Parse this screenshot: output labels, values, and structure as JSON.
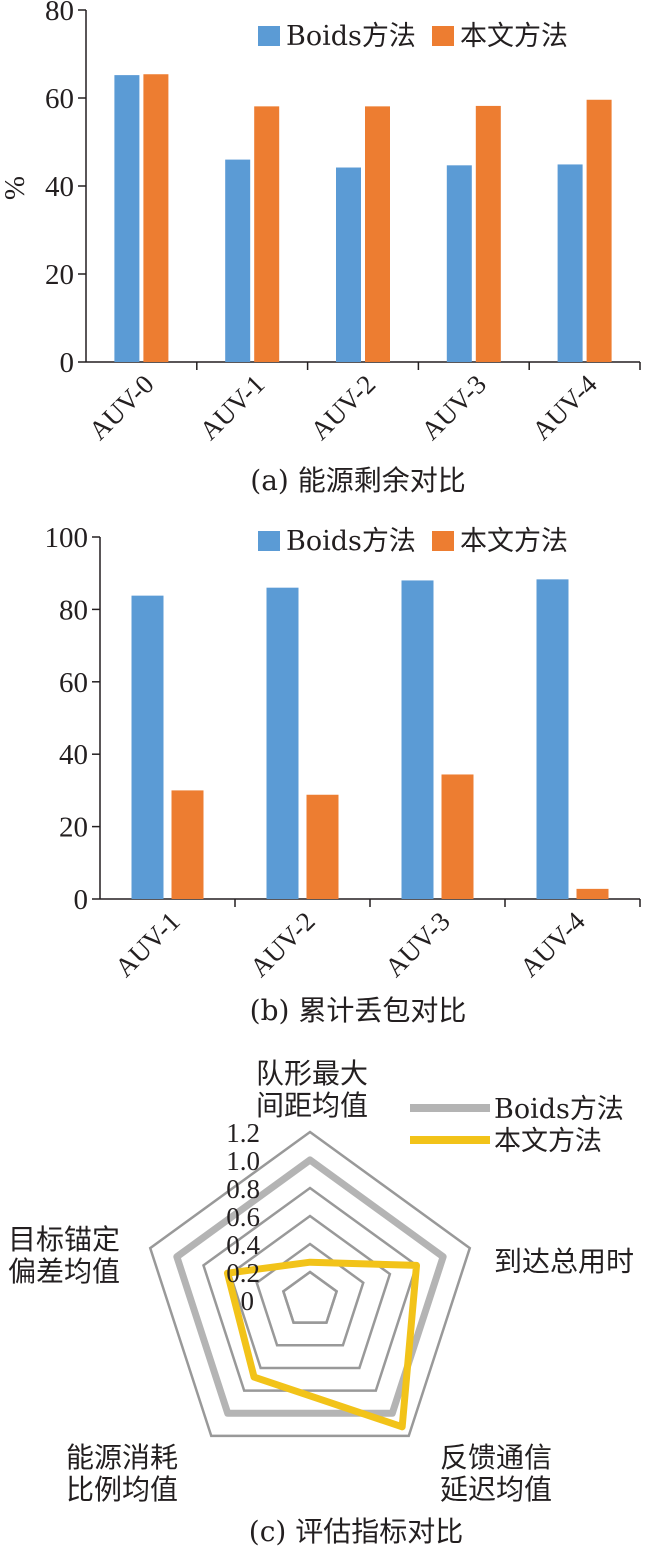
{
  "colors": {
    "boids": "#5b9bd5",
    "ours": "#ed7d31",
    "radar_boids": "#b4b4b4",
    "radar_ours": "#f2c319",
    "grid": "#999999",
    "axis": "#231f20"
  },
  "chart_data": [
    {
      "id": "a",
      "type": "bar",
      "caption": "(a) 能源剩余对比",
      "ylabel": "%",
      "ylim": [
        0,
        80
      ],
      "yticks": [
        "0",
        "20",
        "40",
        "60",
        "80"
      ],
      "categories": [
        "AUV-0",
        "AUV-1",
        "AUV-2",
        "AUV-3",
        "AUV-4"
      ],
      "series": [
        {
          "name": "Boids方法",
          "values": [
            65.2,
            46.0,
            44.2,
            44.7,
            44.9
          ]
        },
        {
          "name": "本文方法",
          "values": [
            65.4,
            58.1,
            58.1,
            58.2,
            59.6
          ]
        }
      ],
      "legend": "top-right",
      "grid": false
    },
    {
      "id": "b",
      "type": "bar",
      "caption": "(b) 累计丢包对比",
      "ylabel": "",
      "ylim": [
        0,
        100
      ],
      "yticks": [
        "0",
        "20",
        "40",
        "60",
        "80",
        "100"
      ],
      "categories": [
        "AUV-1",
        "AUV-2",
        "AUV-3",
        "AUV-4"
      ],
      "series": [
        {
          "name": "Boids方法",
          "values": [
            83.8,
            86.0,
            88.0,
            88.3
          ]
        },
        {
          "name": "本文方法",
          "values": [
            30.0,
            28.8,
            34.4,
            2.8
          ]
        }
      ],
      "legend": "top-right",
      "grid": false
    },
    {
      "id": "c",
      "type": "radar",
      "caption": "(c) 评估指标对比",
      "axes": [
        [
          "队形最大",
          "间距均值"
        ],
        [
          "到达总用时"
        ],
        [
          "反馈通信",
          "延迟均值"
        ],
        [
          "能源消耗",
          "比例均值"
        ],
        [
          "目标锚定",
          "偏差均值"
        ]
      ],
      "rmax": 1.2,
      "rticks": [
        "0",
        "0.2",
        "0.4",
        "0.6",
        "0.8",
        "1.0",
        "1.2"
      ],
      "series": [
        {
          "name": "Boids方法",
          "values": [
            1.0,
            1.0,
            1.0,
            1.0,
            1.0
          ]
        },
        {
          "name": "本文方法",
          "values": [
            0.27,
            0.8,
            1.12,
            0.68,
            0.62
          ]
        }
      ],
      "legend": "top-right"
    }
  ]
}
